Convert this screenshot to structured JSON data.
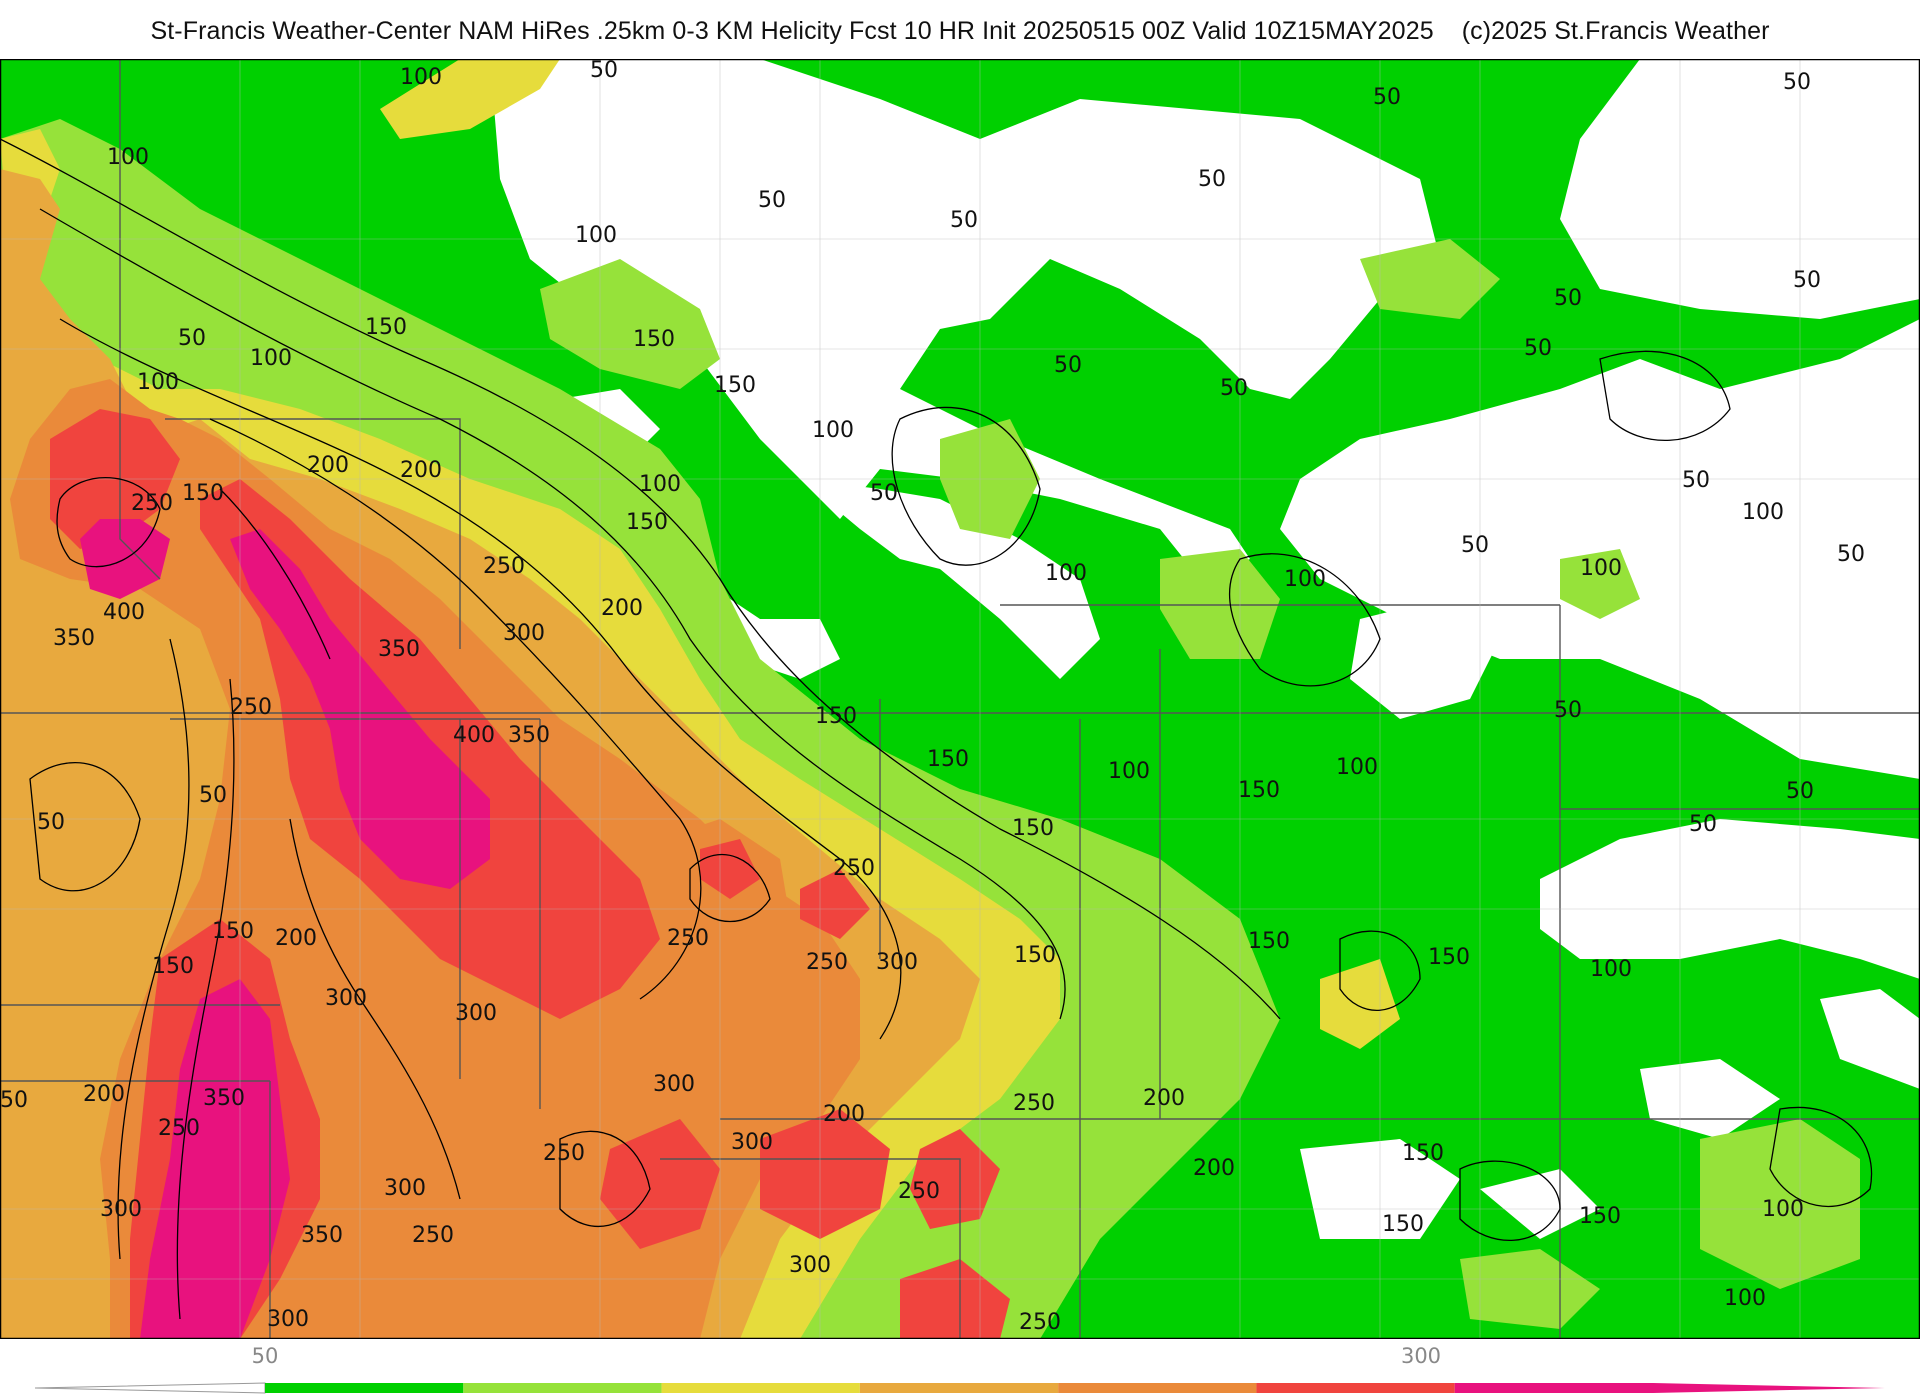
{
  "header": {
    "title": "St-Francis Weather-Center NAM HiRes .25km 0-3 KM Helicity Fcst 10 HR Init 20250515 00Z  Valid 10Z15MAY2025",
    "copyright": "(c)2025 St.Francis Weather"
  },
  "map": {
    "field": "0-3 KM Helicity",
    "colors": {
      "background": "#ffffff",
      "c50": "#00d000",
      "c100": "#96e23a",
      "c150": "#e6dc3c",
      "c200": "#e8a93e",
      "c250": "#ea8a3a",
      "c300": "#f0443e",
      "c350": "#e8127e",
      "contour": "#000000",
      "borders": "#777777"
    },
    "contour_labels": [
      "50",
      "100",
      "150",
      "200",
      "250",
      "300",
      "350",
      "400"
    ]
  },
  "colorbar": {
    "bins": [
      {
        "from": 50,
        "to": 100,
        "color": "#00d000"
      },
      {
        "from": 100,
        "to": 150,
        "color": "#96e23a"
      },
      {
        "from": 150,
        "to": 200,
        "color": "#e6dc3c"
      },
      {
        "from": 200,
        "to": 250,
        "color": "#e8a93e"
      },
      {
        "from": 250,
        "to": 300,
        "color": "#ea8a3a"
      },
      {
        "from": 300,
        "to": 350,
        "color": "#f0443e"
      },
      {
        "from": 350,
        "to": 400,
        "color": "#e8127e"
      }
    ],
    "labels": [
      "50",
      "300"
    ]
  }
}
